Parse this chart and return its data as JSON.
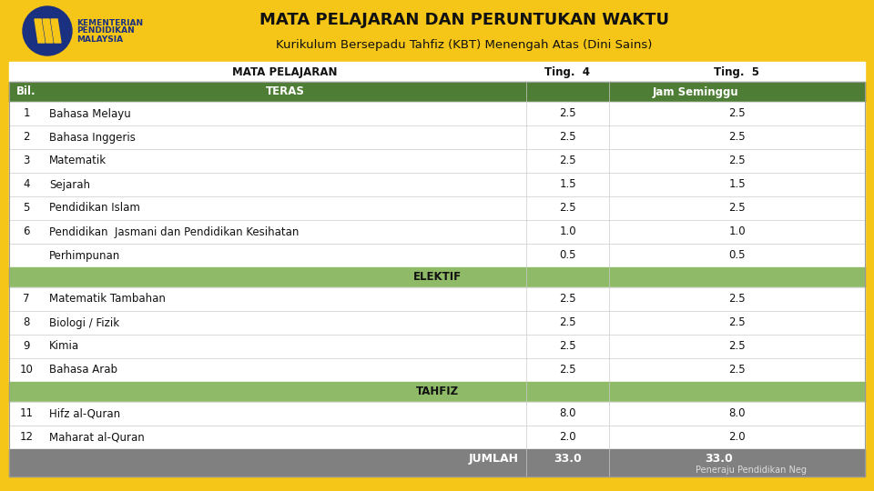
{
  "title_line1": "MATA PELAJARAN DAN PERUNTUKAN WAKTU",
  "title_line2": "Kurikulum Bersepadu Tahfiz (KBT) Menengah Atas (Dini Sains)",
  "header_bg": "#F5C518",
  "col_header_label1": "MATA PELAJARAN",
  "col_header_label2": "Ting.  4",
  "col_header_label3": "Ting.  5",
  "section_teras_label": "TERAS",
  "jam_seminggu_label": "Jam Seminggu",
  "bil_label": "Bil.",
  "section_header_bg": "#4e7d35",
  "elektif_header_bg": "#8fba68",
  "footer_bg": "#808080",
  "jumlah_label": "JUMLAH",
  "peneraju_label": "Peneraju Pendidikan Neg",
  "rows": [
    {
      "bil": "1",
      "name": "Bahasa Melayu",
      "t4": "2.5",
      "t5": "2.5",
      "type": "data"
    },
    {
      "bil": "2",
      "name": "Bahasa Inggeris",
      "t4": "2.5",
      "t5": "2.5",
      "type": "data"
    },
    {
      "bil": "3",
      "name": "Matematik",
      "t4": "2.5",
      "t5": "2.5",
      "type": "data"
    },
    {
      "bil": "4",
      "name": "Sejarah",
      "t4": "1.5",
      "t5": "1.5",
      "type": "data"
    },
    {
      "bil": "5",
      "name": "Pendidikan Islam",
      "t4": "2.5",
      "t5": "2.5",
      "type": "data"
    },
    {
      "bil": "6",
      "name": "Pendidikan  Jasmani dan Pendidikan Kesihatan",
      "t4": "1.0",
      "t5": "1.0",
      "type": "data"
    },
    {
      "bil": "",
      "name": "Perhimpunan",
      "t4": "0.5",
      "t5": "0.5",
      "type": "data"
    },
    {
      "bil": "",
      "name": "ELEKTIF",
      "t4": "",
      "t5": "",
      "type": "section"
    },
    {
      "bil": "7",
      "name": "Matematik Tambahan",
      "t4": "2.5",
      "t5": "2.5",
      "type": "data"
    },
    {
      "bil": "8",
      "name": "Biologi / Fizik",
      "t4": "2.5",
      "t5": "2.5",
      "type": "data"
    },
    {
      "bil": "9",
      "name": "Kimia",
      "t4": "2.5",
      "t5": "2.5",
      "type": "data"
    },
    {
      "bil": "10",
      "name": "Bahasa Arab",
      "t4": "2.5",
      "t5": "2.5",
      "type": "data"
    },
    {
      "bil": "",
      "name": "TAHFIZ",
      "t4": "",
      "t5": "",
      "type": "section"
    },
    {
      "bil": "11",
      "name": "Hifz al-Quran",
      "t4": "8.0",
      "t5": "8.0",
      "type": "data"
    },
    {
      "bil": "12",
      "name": "Maharat al-Quran",
      "t4": "2.0",
      "t5": "2.0",
      "type": "data"
    }
  ],
  "jumlah_t4": "33.0",
  "jumlah_t5": "33.0",
  "logo_blue": "#1a3080",
  "ministry_line1": "KEMENTERIAN",
  "ministry_line2": "PENDIDIKAN",
  "ministry_line3": "MALAYSIA",
  "title_color": "#111111",
  "ministry_color": "#1a3080"
}
